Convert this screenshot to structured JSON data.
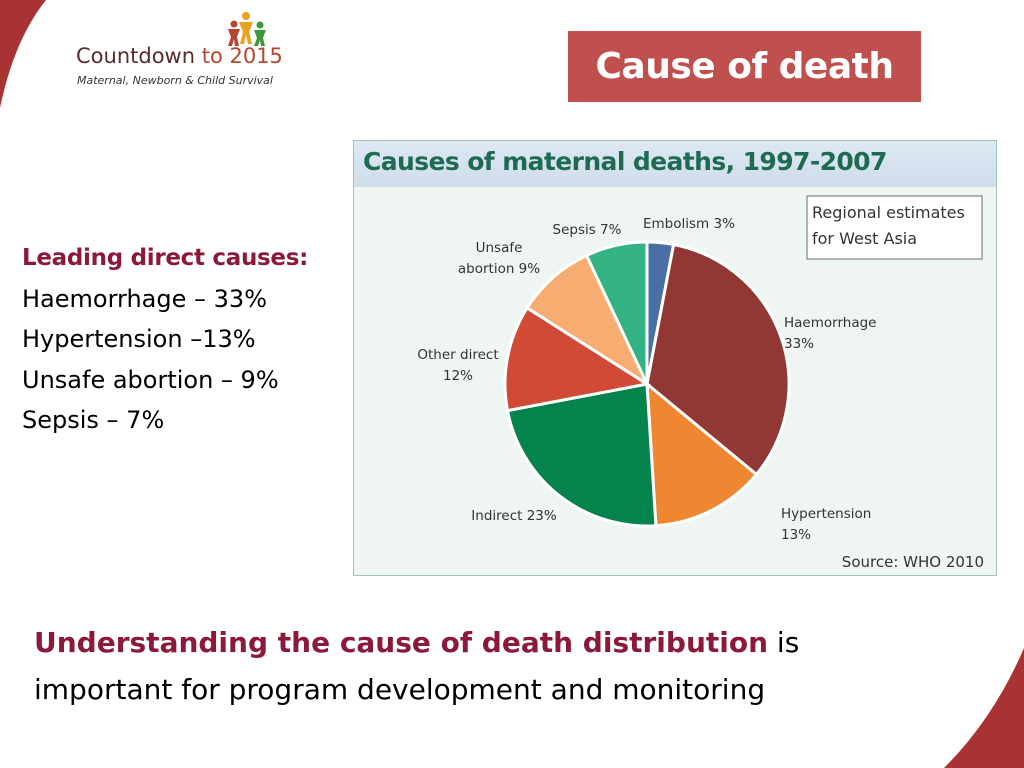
{
  "slide": {
    "title": "Cause of death",
    "accent_color": "#c0504d"
  },
  "logo": {
    "name_part1": "Countdown",
    "name_part2": "to 2015",
    "subtitle": "Maternal, Newborn & Child Survival"
  },
  "left_panel": {
    "heading": "Leading direct causes:",
    "items": [
      "Haemorrhage – 33%",
      "Hypertension –13%",
      "Unsafe abortion – 9%",
      "Sepsis – 7%"
    ]
  },
  "chart_data": {
    "type": "pie",
    "title": "Causes of maternal deaths, 1997-2007",
    "note_lines": [
      "Regional estimates",
      "for West Asia"
    ],
    "source": "Source: WHO 2010",
    "slices": [
      {
        "label": "Embolism",
        "value": 3,
        "color": "#4a6fa5",
        "label_lines": [
          "Embolism 3%"
        ]
      },
      {
        "label": "Haemorrhage",
        "value": 33,
        "color": "#923834",
        "label_lines": [
          "Haemorrhage",
          "33%"
        ]
      },
      {
        "label": "Hypertension",
        "value": 13,
        "color": "#ef8632",
        "label_lines": [
          "Hypertension",
          "13%"
        ]
      },
      {
        "label": "Indirect",
        "value": 23,
        "color": "#05834d",
        "label_lines": [
          "Indirect 23%"
        ]
      },
      {
        "label": "Other direct",
        "value": 12,
        "color": "#d14a35",
        "label_lines": [
          "Other direct",
          "12%"
        ]
      },
      {
        "label": "Unsafe abortion",
        "value": 9,
        "color": "#f7ad72",
        "label_lines": [
          "Unsafe",
          "abortion 9%"
        ]
      },
      {
        "label": "Sepsis",
        "value": 7,
        "color": "#33b383",
        "label_lines": [
          "Sepsis 7%"
        ]
      }
    ]
  },
  "bottom": {
    "emphasis": "Understanding the cause of death distribution",
    "rest_line1": " is",
    "line2": "important for program development and monitoring"
  }
}
